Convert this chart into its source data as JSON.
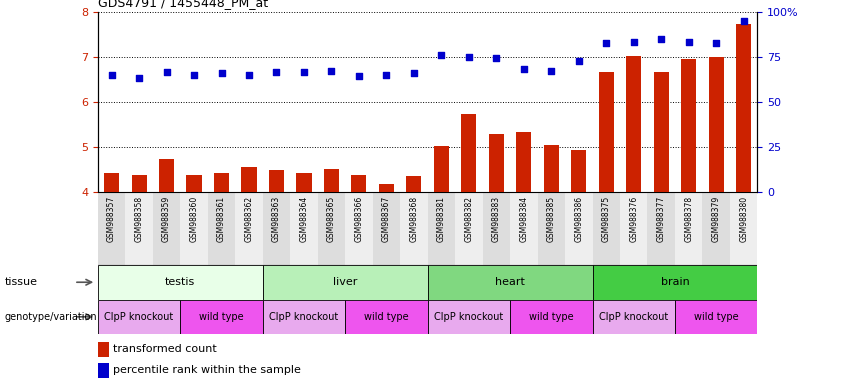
{
  "title": "GDS4791 / 1455448_PM_at",
  "samples": [
    "GSM988357",
    "GSM988358",
    "GSM988359",
    "GSM988360",
    "GSM988361",
    "GSM988362",
    "GSM988363",
    "GSM988364",
    "GSM988365",
    "GSM988366",
    "GSM988367",
    "GSM988368",
    "GSM988381",
    "GSM988382",
    "GSM988383",
    "GSM988384",
    "GSM988385",
    "GSM988386",
    "GSM988375",
    "GSM988376",
    "GSM988377",
    "GSM988378",
    "GSM988379",
    "GSM988380"
  ],
  "bar_values": [
    4.42,
    4.37,
    4.73,
    4.38,
    4.42,
    4.55,
    4.48,
    4.42,
    4.5,
    4.37,
    4.17,
    4.35,
    5.03,
    5.72,
    5.29,
    5.32,
    5.05,
    4.93,
    6.67,
    7.02,
    6.65,
    6.95,
    7.0,
    7.73
  ],
  "dot_values": [
    6.6,
    6.53,
    6.65,
    6.6,
    6.63,
    6.6,
    6.65,
    6.65,
    6.68,
    6.57,
    6.6,
    6.63,
    7.03,
    7.0,
    6.97,
    6.72,
    6.68,
    6.9,
    7.3,
    7.33,
    7.38,
    7.33,
    7.3,
    7.78
  ],
  "tissues": [
    {
      "label": "testis",
      "start": 0,
      "end": 6,
      "color": "#e8ffe8"
    },
    {
      "label": "liver",
      "start": 6,
      "end": 12,
      "color": "#b8f0b8"
    },
    {
      "label": "heart",
      "start": 12,
      "end": 18,
      "color": "#80d880"
    },
    {
      "label": "brain",
      "start": 18,
      "end": 24,
      "color": "#44cc44"
    }
  ],
  "genotypes": [
    {
      "label": "ClpP knockout",
      "start": 0,
      "end": 3,
      "color": "#e8aaee"
    },
    {
      "label": "wild type",
      "start": 3,
      "end": 6,
      "color": "#ee55ee"
    },
    {
      "label": "ClpP knockout",
      "start": 6,
      "end": 9,
      "color": "#e8aaee"
    },
    {
      "label": "wild type",
      "start": 9,
      "end": 12,
      "color": "#ee55ee"
    },
    {
      "label": "ClpP knockout",
      "start": 12,
      "end": 15,
      "color": "#e8aaee"
    },
    {
      "label": "wild type",
      "start": 15,
      "end": 18,
      "color": "#ee55ee"
    },
    {
      "label": "ClpP knockout",
      "start": 18,
      "end": 21,
      "color": "#e8aaee"
    },
    {
      "label": "wild type",
      "start": 21,
      "end": 24,
      "color": "#ee55ee"
    }
  ],
  "ylim_left": [
    4.0,
    8.0
  ],
  "ylim_right": [
    0,
    100
  ],
  "yticks_left": [
    4,
    5,
    6,
    7,
    8
  ],
  "yticks_right": [
    0,
    25,
    50,
    75,
    100
  ],
  "bar_color": "#cc2200",
  "dot_color": "#0000cc",
  "bar_width": 0.55
}
